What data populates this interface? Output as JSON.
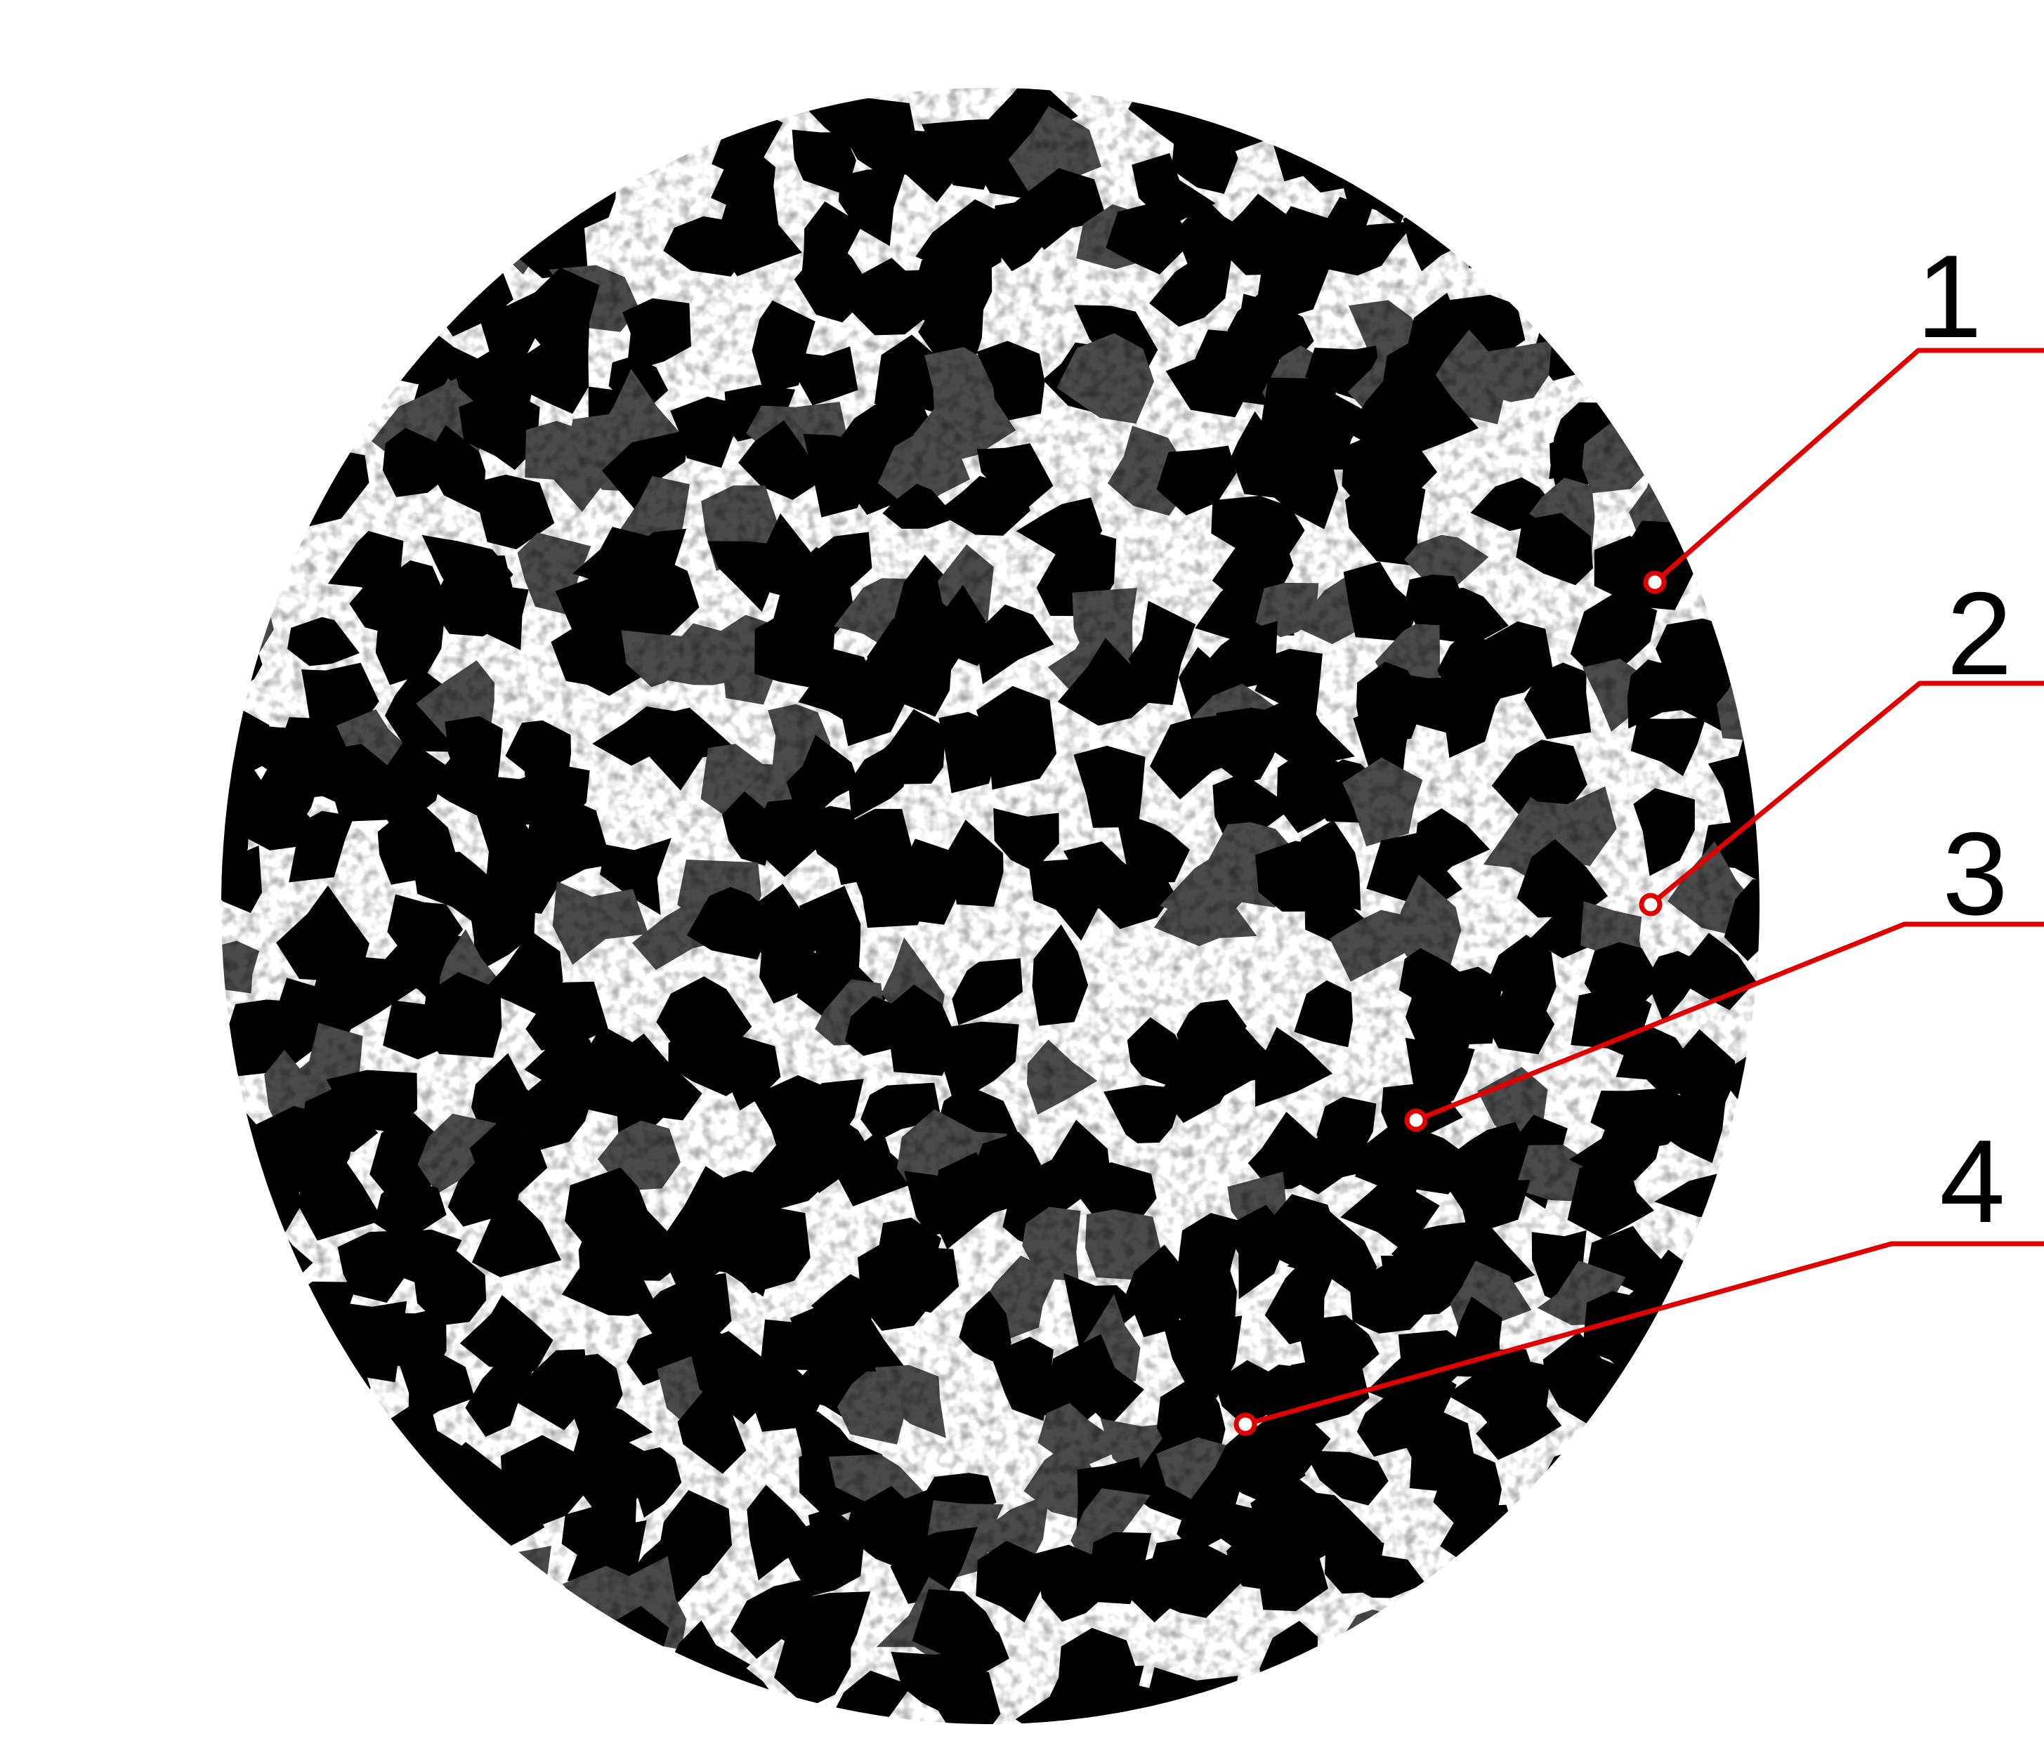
{
  "figure": {
    "description_role": "micrograph-with-callouts",
    "colors": {
      "background": "#ffffff",
      "phase_dark": "#000000",
      "phase_light": "#ffffff",
      "phase_grey": "#4a4a4a",
      "leader": "#e00000"
    }
  },
  "callouts": [
    {
      "id": "1",
      "label": "1"
    },
    {
      "id": "2",
      "label": "2"
    },
    {
      "id": "3",
      "label": "3"
    },
    {
      "id": "4",
      "label": "4"
    }
  ]
}
